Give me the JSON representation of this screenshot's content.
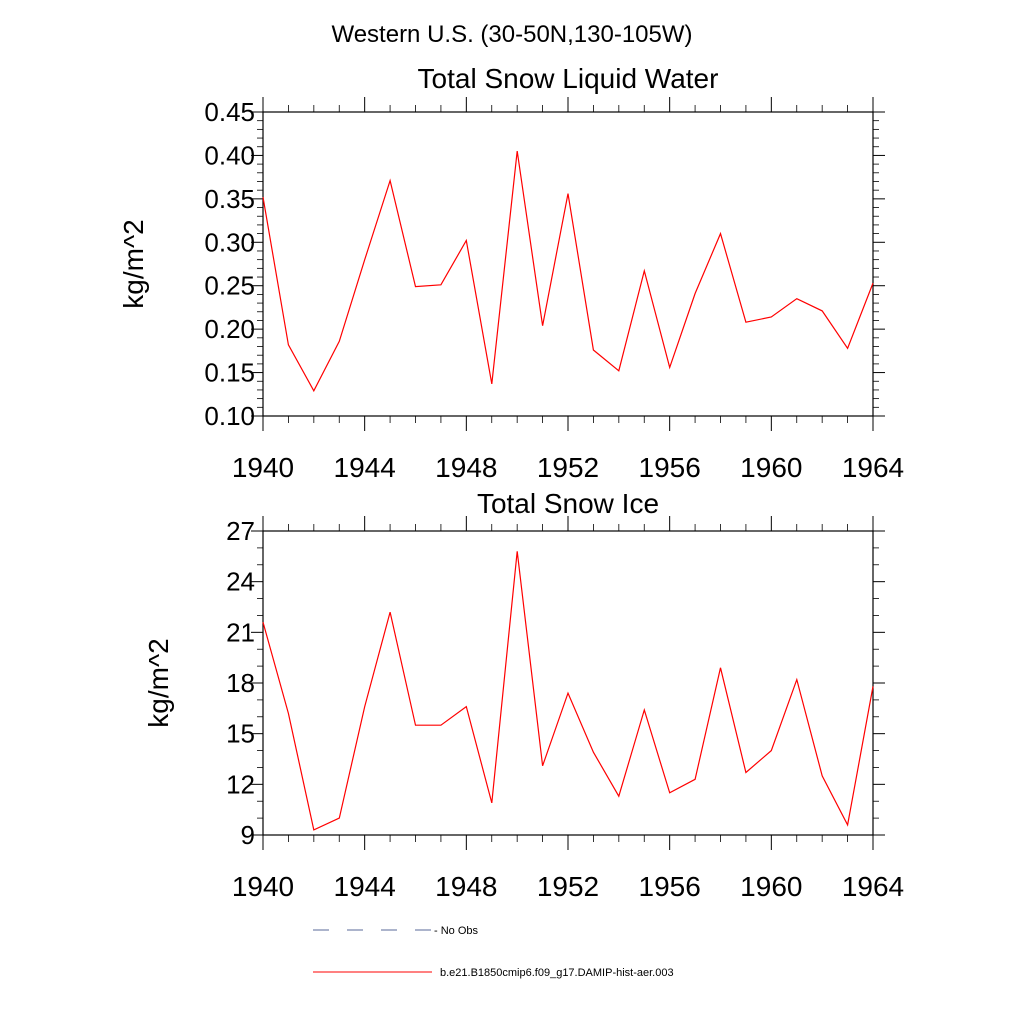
{
  "page": {
    "title": "Western U.S. (30-50N,130-105W)"
  },
  "chart_data": [
    {
      "type": "line",
      "title": "Total Snow Liquid Water",
      "xlabel": "",
      "ylabel": "kg/m^2",
      "xlim": [
        1940,
        1964
      ],
      "ylim": [
        0.1,
        0.45
      ],
      "x_ticks": [
        1940,
        1944,
        1948,
        1952,
        1956,
        1960,
        1964
      ],
      "x_tick_labels": [
        "1940",
        "1944",
        "1948",
        "1952",
        "1956",
        "1960",
        "1964"
      ],
      "y_ticks": [
        0.1,
        0.15,
        0.2,
        0.25,
        0.3,
        0.35,
        0.4,
        0.45
      ],
      "y_tick_labels": [
        "0.10",
        "0.15",
        "0.20",
        "0.25",
        "0.30",
        "0.35",
        "0.40",
        "0.45"
      ],
      "series": [
        {
          "name": "b.e21.B1850cmip6.f09_g17.DAMIP-hist-aer.003",
          "color": "#ff0000",
          "x": [
            1940,
            1941,
            1942,
            1943,
            1944,
            1945,
            1946,
            1947,
            1948,
            1949,
            1950,
            1951,
            1952,
            1953,
            1954,
            1955,
            1956,
            1957,
            1958,
            1959,
            1960,
            1961,
            1962,
            1963,
            1964
          ],
          "y": [
            0.352,
            0.182,
            0.129,
            0.186,
            0.28,
            0.371,
            0.249,
            0.251,
            0.302,
            0.137,
            0.405,
            0.204,
            0.356,
            0.176,
            0.152,
            0.267,
            0.156,
            0.241,
            0.31,
            0.208,
            0.214,
            0.235,
            0.221,
            0.178,
            0.253
          ]
        }
      ]
    },
    {
      "type": "line",
      "title": "Total Snow Ice",
      "xlabel": "",
      "ylabel": "kg/m^2",
      "xlim": [
        1940,
        1964
      ],
      "ylim": [
        9,
        27
      ],
      "x_ticks": [
        1940,
        1944,
        1948,
        1952,
        1956,
        1960,
        1964
      ],
      "x_tick_labels": [
        "1940",
        "1944",
        "1948",
        "1952",
        "1956",
        "1960",
        "1964"
      ],
      "y_ticks": [
        9,
        12,
        15,
        18,
        21,
        24,
        27
      ],
      "y_tick_labels": [
        "9",
        "12",
        "15",
        "18",
        "21",
        "24",
        "27"
      ],
      "series": [
        {
          "name": "b.e21.B1850cmip6.f09_g17.DAMIP-hist-aer.003",
          "color": "#ff0000",
          "x": [
            1940,
            1941,
            1942,
            1943,
            1944,
            1945,
            1946,
            1947,
            1948,
            1949,
            1950,
            1951,
            1952,
            1953,
            1954,
            1955,
            1956,
            1957,
            1958,
            1959,
            1960,
            1961,
            1962,
            1963,
            1964
          ],
          "y": [
            21.6,
            16.2,
            9.3,
            10.0,
            16.6,
            22.2,
            15.5,
            15.5,
            16.6,
            10.9,
            25.8,
            13.1,
            17.4,
            13.9,
            11.3,
            16.4,
            11.5,
            12.3,
            18.9,
            12.7,
            14.0,
            18.2,
            12.5,
            9.6,
            17.8
          ]
        }
      ]
    }
  ],
  "legend": {
    "placement": "bottom",
    "entries": [
      {
        "label": "No Obs",
        "color": "#5a6a9a",
        "style": "dashed"
      },
      {
        "label": "b.e21.B1850cmip6.f09_g17.DAMIP-hist-aer.003",
        "color": "#ff0000",
        "style": "solid"
      }
    ]
  }
}
